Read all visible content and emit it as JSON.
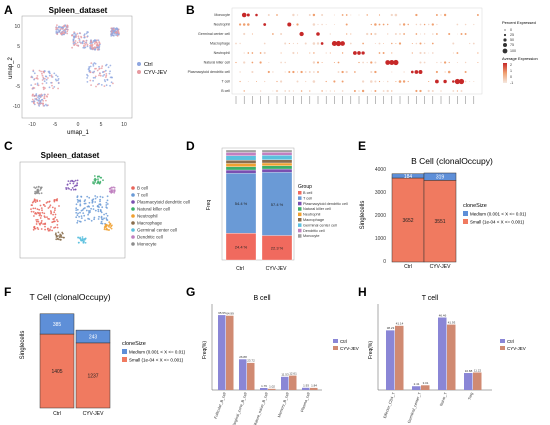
{
  "figure": {
    "panels": {
      "A": "A",
      "B": "B",
      "C": "C",
      "D": "D",
      "E": "E",
      "F": "F",
      "G": "G",
      "H": "H"
    },
    "colors": {
      "ctrl_umap": "#8ea6e0",
      "cyv_umap": "#e79aa0",
      "b_cell": "#f06a5e",
      "t_cell": "#6a9ad6",
      "medium": "#5e8fd8",
      "small": "#f07a60",
      "bar_ctrl": "#8a86d6",
      "bar_cyv": "#d08a72"
    }
  },
  "panelA": {
    "title": "Spleen_dataset",
    "xlabel": "umap_1",
    "ylabel": "umap_2",
    "legend": [
      "Ctrl",
      "CYV-JEV"
    ],
    "xticks": [
      "-10",
      "-5",
      "0",
      "5",
      "10"
    ],
    "yticks": [
      "10",
      "5",
      "0",
      "-5",
      "-10"
    ]
  },
  "panelB": {
    "rows": [
      "Monocyte",
      "Neutrophil",
      "Germinal center cell",
      "Macrophage",
      "Neutrophil",
      "Natural killer cell",
      "Plasmacytoid dendritic cell",
      "T cell",
      "B cell"
    ],
    "legend_title_1": "Percent Expressed",
    "legend_title_2": "Average Expression",
    "pct_levels": [
      "0",
      "25",
      "50",
      "75",
      "100"
    ],
    "avg_levels": [
      "2",
      "1",
      "0",
      "-1"
    ]
  },
  "panelC": {
    "title": "Spleen_dataset",
    "legend": [
      "B cell",
      "T cell",
      "Plasmacytoid dendritic cell",
      "Natural killer cell",
      "Neutrophil",
      "Macrophage",
      "Germinal center cell",
      "Dendritic cell",
      "Monocyte"
    ]
  },
  "panelD": {
    "ylabel": "Freq",
    "legend_title": "Group",
    "legend": [
      "B cell",
      "T cell",
      "Plasmacytoid dendritic cell",
      "Natural killer cell",
      "Neutrophil",
      "Macrophage",
      "Germinal center cell",
      "Dendritic cell",
      "Monocyte"
    ],
    "groups": [
      "Ctrl",
      "CYV-JEV"
    ],
    "b_labels": [
      "24.4 %",
      "22.3 %"
    ],
    "t_labels": [
      "54.4 %",
      "57.4 %"
    ]
  },
  "panelE": {
    "title": "B Cell (clonalOccupy)",
    "ylabel": "Singlecells",
    "yticks": [
      "4000",
      "3000",
      "2000",
      "1000",
      "0"
    ],
    "groups": [
      "Ctrl",
      "CYV-JEV"
    ],
    "legend_title": "cloneSize",
    "legend": [
      "Medium (0.001 < X <= 0.01)",
      "Small (1e-04 < X <= 0.001)"
    ],
    "medium_labels": [
      "184",
      "319"
    ],
    "small_labels": [
      "3652",
      "3551"
    ]
  },
  "panelF": {
    "title": "T Cell (clonalOccupy)",
    "ylabel": "Singlecells",
    "groups": [
      "Ctrl",
      "CYV-JEV"
    ],
    "legend_title": "cloneSize",
    "legend": [
      "Medium (0.001 < X <= 0.01)",
      "Small (1e-04 < X <= 0.001)"
    ],
    "medium_labels": [
      "385",
      "243"
    ],
    "small_labels": [
      "1405",
      "1237"
    ]
  },
  "chart_data": [
    {
      "panel": "E",
      "type": "bar",
      "title": "B Cell (clonalOccupy)",
      "ylabel": "Singlecells",
      "categories": [
        "Ctrl",
        "CYV-JEV"
      ],
      "ylim": [
        0,
        4000
      ],
      "series": [
        {
          "name": "Small (1e-04 < X <= 0.001)",
          "values": [
            3652,
            3551
          ]
        },
        {
          "name": "Medium (0.001 < X <= 0.01)",
          "values": [
            184,
            319
          ]
        }
      ]
    },
    {
      "panel": "F",
      "type": "bar",
      "title": "T Cell (clonalOccupy)",
      "ylabel": "Singlecells",
      "categories": [
        "Ctrl",
        "CYV-JEV"
      ],
      "ylim": [
        0,
        1900
      ],
      "series": [
        {
          "name": "Small (1e-04 < X <= 0.001)",
          "values": [
            1405,
            1237
          ]
        },
        {
          "name": "Medium (0.001 < X <= 0.01)",
          "values": [
            385,
            243
          ]
        }
      ]
    },
    {
      "panel": "G",
      "type": "bar",
      "title": "B cell",
      "ylabel": "Freq(%)",
      "categories": [
        "Follicular_B_cell",
        "Marginal_zone_B_cell",
        "Mature_naive_B_cell",
        "Memory_B_cell",
        "Plasma_cell"
      ],
      "ylim": [
        0,
        70
      ],
      "series": [
        {
          "name": "Ctrl",
          "values": [
            65.55,
            26.88,
            1.76,
            11.53,
            1.93
          ]
        },
        {
          "name": "CYV-JEV",
          "values": [
            64.99,
            23.72,
            1.02,
            12.61,
            1.84
          ]
        }
      ]
    },
    {
      "panel": "H",
      "type": "bar",
      "title": "T cell",
      "ylabel": "Freq(%)",
      "categories": [
        "Effector_CD4_T",
        "Germinal_center_T",
        "Naive_T",
        "Treg"
      ],
      "ylim": [
        0,
        50
      ],
      "series": [
        {
          "name": "Ctrl",
          "values": [
            38.23,
            2.41,
            46.46,
            10.88
          ]
        },
        {
          "name": "CYV-JEV",
          "values": [
            41.14,
            3.01,
            41.93,
            11.22
          ]
        }
      ]
    }
  ]
}
